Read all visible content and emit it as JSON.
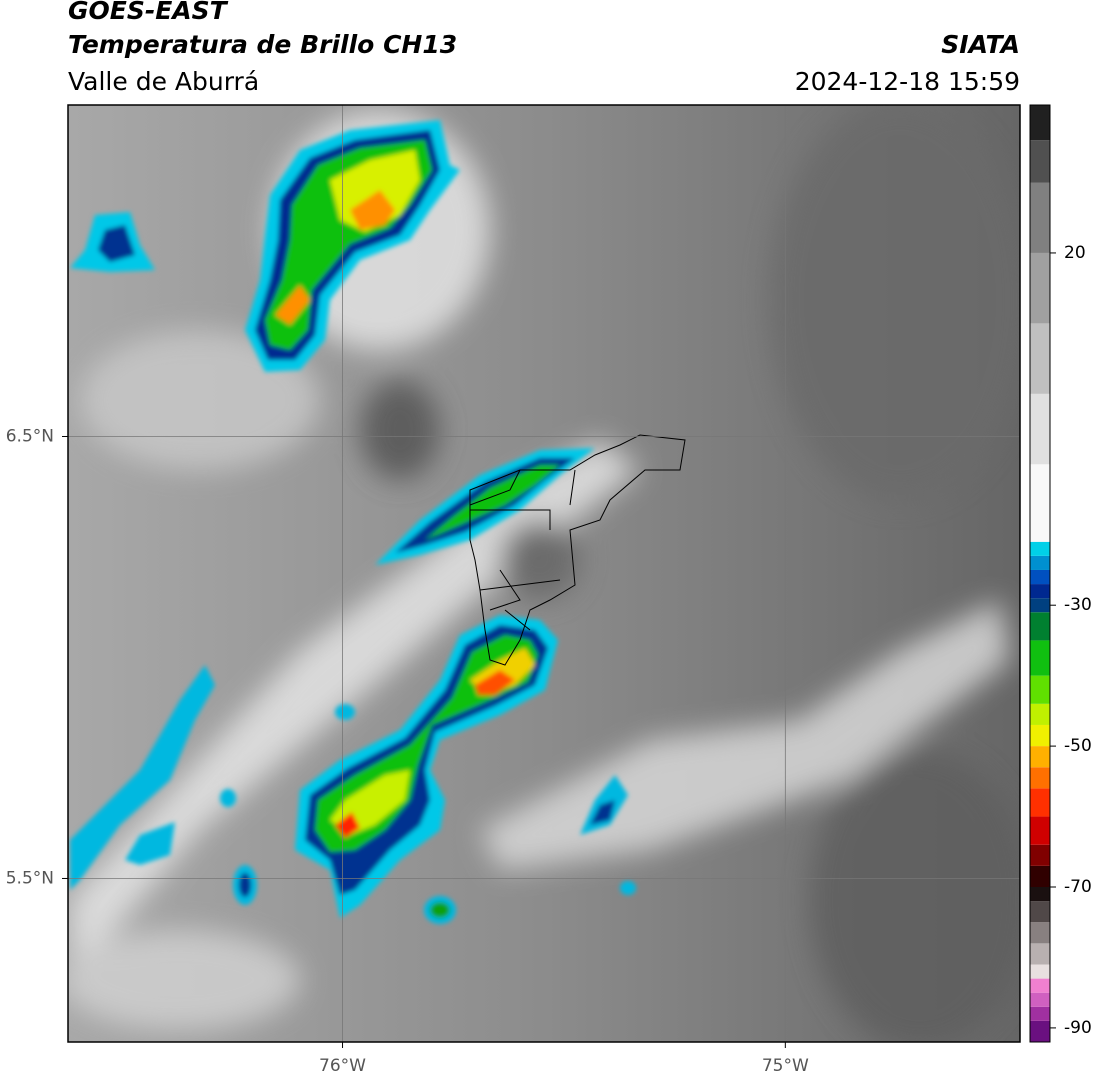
{
  "header": {
    "source": "GOES-EAST",
    "product": "Temperatura de Brillo CH13",
    "region": "Valle de Aburrá",
    "agency": "SIATA",
    "datetime": "2024-12-18 15:59"
  },
  "map": {
    "xlim": [
      -76.62,
      -74.47
    ],
    "ylim": [
      5.13,
      7.25
    ],
    "xticks": [
      {
        "value": -76,
        "label": "76°W"
      },
      {
        "value": -75,
        "label": "75°W"
      }
    ],
    "yticks": [
      {
        "value": 6.5,
        "label": "6.5°N"
      },
      {
        "value": 5.5,
        "label": "5.5°N"
      }
    ],
    "grid": true
  },
  "colorbar": {
    "lim": [
      -92,
      41
    ],
    "ticks": [
      20,
      -30,
      -50,
      -70,
      -90
    ],
    "stops": [
      {
        "value": -92,
        "color": "#6a1080"
      },
      {
        "value": -89,
        "color": "#a030a0"
      },
      {
        "value": -87,
        "color": "#d060c0"
      },
      {
        "value": -85,
        "color": "#f080d0"
      },
      {
        "value": -83,
        "color": "#e8e0e0"
      },
      {
        "value": -81,
        "color": "#b8b0b0"
      },
      {
        "value": -78,
        "color": "#888080"
      },
      {
        "value": -75,
        "color": "#504848"
      },
      {
        "value": -72,
        "color": "#1a1010"
      },
      {
        "value": -70,
        "color": "#300000"
      },
      {
        "value": -67,
        "color": "#800000"
      },
      {
        "value": -64,
        "color": "#d00000"
      },
      {
        "value": -60,
        "color": "#ff3000"
      },
      {
        "value": -56,
        "color": "#ff7000"
      },
      {
        "value": -53,
        "color": "#ffb000"
      },
      {
        "value": -50,
        "color": "#f0f000"
      },
      {
        "value": -47,
        "color": "#c0f000"
      },
      {
        "value": -44,
        "color": "#60e000"
      },
      {
        "value": -40,
        "color": "#10c010"
      },
      {
        "value": -35,
        "color": "#008030"
      },
      {
        "value": -31,
        "color": "#004080"
      },
      {
        "value": -29,
        "color": "#002890"
      },
      {
        "value": -27,
        "color": "#0050c0"
      },
      {
        "value": -25,
        "color": "#0090d0"
      },
      {
        "value": -23,
        "color": "#00d0e8"
      },
      {
        "value": -21,
        "color": "#f8f8f8"
      },
      {
        "value": -10,
        "color": "#e0e0e0"
      },
      {
        "value": 0,
        "color": "#c0c0c0"
      },
      {
        "value": 10,
        "color": "#a0a0a0"
      },
      {
        "value": 20,
        "color": "#808080"
      },
      {
        "value": 30,
        "color": "#505050"
      },
      {
        "value": 36,
        "color": "#202020"
      }
    ]
  }
}
